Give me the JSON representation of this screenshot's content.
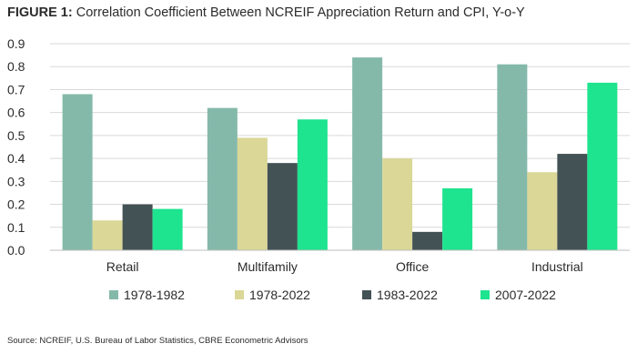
{
  "title_prefix": "FIGURE 1:",
  "title_text": " Correlation Coefficient Between NCREIF Appreciation Return and CPI, Y-o-Y",
  "source": "Source: NCREIF, U.S. Bureau of Labor Statistics, CBRE Econometric Advisors",
  "chart_data": {
    "type": "bar",
    "title": "FIGURE 1: Correlation Coefficient Between NCREIF Appreciation Return and CPI, Y-o-Y",
    "categories": [
      "Retail",
      "Multifamily",
      "Office",
      "Industrial"
    ],
    "series": [
      {
        "name": "1978-1982",
        "color": "#84b9aa",
        "values": [
          0.68,
          0.62,
          0.84,
          0.81
        ]
      },
      {
        "name": "1978-2022",
        "color": "#dad797",
        "values": [
          0.13,
          0.49,
          0.4,
          0.34
        ]
      },
      {
        "name": "1983-2022",
        "color": "#435254",
        "values": [
          0.2,
          0.38,
          0.08,
          0.42
        ]
      },
      {
        "name": "2007-2022",
        "color": "#1ee38f",
        "values": [
          0.18,
          0.57,
          0.27,
          0.73
        ]
      }
    ],
    "ylim": [
      0,
      0.9
    ],
    "yticks": [
      "0.0",
      "0.1",
      "0.2",
      "0.3",
      "0.4",
      "0.5",
      "0.6",
      "0.7",
      "0.8",
      "0.9"
    ],
    "xlabel": "",
    "ylabel": "",
    "grid": true,
    "legend": "bottom"
  }
}
